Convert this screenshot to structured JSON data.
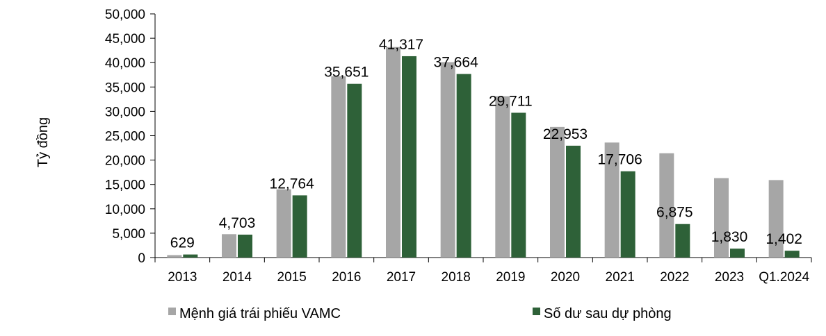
{
  "chart_data": {
    "type": "bar",
    "title": "",
    "xlabel": "",
    "ylabel": "Tỷ đồng",
    "ylim": [
      0,
      50000
    ],
    "yticks": [
      0,
      5000,
      10000,
      15000,
      20000,
      25000,
      30000,
      35000,
      40000,
      45000,
      50000
    ],
    "ytick_labels": [
      "0",
      "5,000",
      "10,000",
      "15,000",
      "20,000",
      "25,000",
      "30,000",
      "35,000",
      "40,000",
      "45,000",
      "50,000"
    ],
    "grid": false,
    "legend_position": "bottom",
    "categories": [
      "2013",
      "2014",
      "2015",
      "2016",
      "2017",
      "2018",
      "2019",
      "2020",
      "2021",
      "2022",
      "2023",
      "Q1.2024"
    ],
    "series": [
      {
        "name": "Mệnh giá trái phiếu VAMC",
        "color": "#a6a6a6",
        "values": [
          500,
          4800,
          14000,
          37200,
          43200,
          40100,
          33100,
          26800,
          23600,
          21400,
          16300,
          15900
        ],
        "labels": [
          "",
          "",
          "",
          "",
          "",
          "",
          "",
          "",
          "",
          "",
          "",
          ""
        ]
      },
      {
        "name": "Số dư sau dự phòng",
        "color": "#2e6138",
        "values": [
          629,
          4703,
          12764,
          35651,
          41317,
          37664,
          29711,
          22953,
          17706,
          6875,
          1830,
          1402
        ],
        "labels": [
          "629",
          "4,703",
          "12,764",
          "35,651",
          "41,317",
          "37,664",
          "29,711",
          "22,953",
          "17,706",
          "6,875",
          "1,830",
          "1,402"
        ]
      }
    ]
  }
}
